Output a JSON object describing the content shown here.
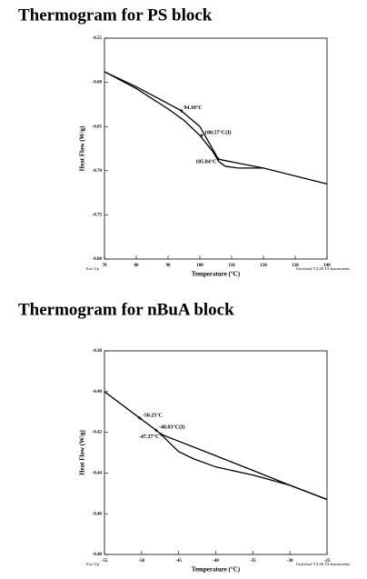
{
  "chart_data": [
    {
      "type": "line",
      "title": "Thermogram for PS block",
      "x_label": "Temperature (°C)",
      "y_label": "Heat Flow (W/g)",
      "notes": [
        "Exo Up",
        "Universal V4.2E TA Instruments"
      ],
      "xlim": [
        70,
        140
      ],
      "xticks": [
        70,
        80,
        90,
        100,
        110,
        120,
        130,
        140
      ],
      "ylim": [
        -0.55,
        -0.8
      ],
      "yticks": [
        -0.55,
        {
          "value": -0.6,
          "label": "-0.60"
        },
        -0.65,
        {
          "value": -0.7,
          "label": "-0.70"
        },
        -0.75,
        {
          "value": -0.8,
          "label": "-0.80"
        }
      ],
      "series": [
        {
          "color": "#000000",
          "x": [
            70,
            80,
            90,
            94.1,
            100,
            105.84,
            110,
            120,
            130,
            140
          ],
          "values": [
            -0.588,
            -0.605,
            -0.624,
            -0.632,
            -0.65,
            -0.687,
            -0.69,
            -0.697,
            -0.706,
            -0.715
          ]
        },
        {
          "color": "#000000",
          "x": [
            70,
            80,
            90,
            95,
            100,
            104,
            106,
            108,
            112,
            120
          ],
          "values": [
            -0.588,
            -0.607,
            -0.63,
            -0.643,
            -0.66,
            -0.678,
            -0.69,
            -0.695,
            -0.697,
            -0.697
          ]
        }
      ],
      "annotations": [
        {
          "text": "94.10°C",
          "x": 94.1,
          "y": -0.632
        },
        {
          "text": "100.57°C(I)",
          "x": 100.57,
          "y": -0.66
        },
        {
          "text": "105.84°C",
          "x": 105.84,
          "y": -0.687
        }
      ]
    },
    {
      "type": "line",
      "title": "Thermogram for nBuA block",
      "x_label": "Temperature (°C)",
      "y_label": "Heat Flow (W/g)",
      "notes": [
        "Exo Up",
        "Universal V4.2E TA Instruments"
      ],
      "xlim": [
        -55,
        -25
      ],
      "xticks": [
        -55,
        -50,
        -45,
        -40,
        -35,
        -30,
        -25
      ],
      "ylim": [
        -0.38,
        -0.48
      ],
      "yticks": [
        -0.38,
        {
          "value": -0.4,
          "label": "-0.40"
        },
        -0.42,
        -0.44,
        -0.46,
        -0.48
      ],
      "series": [
        {
          "color": "#000000",
          "x": [
            -55,
            -50.25,
            -48.03,
            -47.37,
            -40,
            -35,
            -30,
            -25
          ],
          "values": [
            -0.4,
            -0.413,
            -0.419,
            -0.421,
            -0.4315,
            -0.4387,
            -0.446,
            -0.453
          ]
        },
        {
          "color": "#000000",
          "x": [
            -47.37,
            -46,
            -45,
            -43,
            -40,
            -35,
            -30,
            -25
          ],
          "values": [
            -0.421,
            -0.426,
            -0.4295,
            -0.433,
            -0.437,
            -0.441,
            -0.446,
            -0.453
          ]
        }
      ],
      "annotations": [
        {
          "text": "-50.25°C",
          "x": -50.25,
          "y": -0.413
        },
        {
          "text": "-48.03°C(I)",
          "x": -48.03,
          "y": -0.419
        },
        {
          "text": "-47.37°C",
          "x": -47.37,
          "y": -0.421
        }
      ]
    }
  ]
}
